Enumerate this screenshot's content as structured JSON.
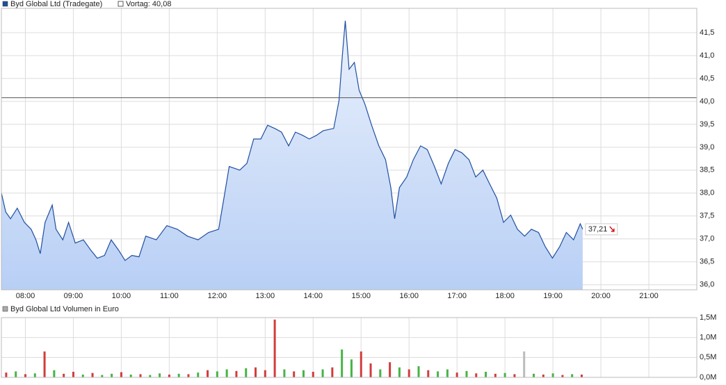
{
  "chart_data": [
    {
      "type": "line",
      "series": [
        {
          "name": "Byd Global Ltd (Tradegate)",
          "color": "#1f4fa0",
          "x": [
            7.5,
            7.59,
            7.69,
            7.83,
            7.98,
            8.12,
            8.22,
            8.31,
            8.41,
            8.56,
            8.64,
            8.78,
            8.9,
            9.04,
            9.21,
            9.36,
            9.5,
            9.65,
            9.79,
            9.94,
            10.08,
            10.22,
            10.37,
            10.51,
            10.73,
            10.95,
            11.17,
            11.38,
            11.6,
            11.82,
            12.03,
            12.14,
            12.25,
            12.47,
            12.62,
            12.76,
            12.91,
            13.05,
            13.2,
            13.34,
            13.49,
            13.63,
            13.78,
            13.92,
            14.07,
            14.21,
            14.43,
            14.54,
            14.61,
            14.67,
            14.75,
            14.86,
            14.96,
            15.08,
            15.22,
            15.37,
            15.51,
            15.62,
            15.7,
            15.8,
            15.95,
            16.09,
            16.24,
            16.38,
            16.53,
            16.67,
            16.82,
            16.96,
            17.1,
            17.25,
            17.39,
            17.54,
            17.68,
            17.83,
            17.97,
            18.12,
            18.26,
            18.41,
            18.55,
            18.7,
            18.84,
            18.99,
            19.14,
            19.28,
            19.43,
            19.57,
            19.62
          ],
          "values": [
            38.0,
            37.59,
            37.44,
            37.67,
            37.36,
            37.21,
            36.98,
            36.68,
            37.36,
            37.74,
            37.21,
            36.98,
            37.36,
            36.91,
            36.98,
            36.76,
            36.58,
            36.64,
            36.98,
            36.76,
            36.53,
            36.64,
            36.61,
            37.06,
            36.98,
            37.29,
            37.21,
            37.06,
            36.98,
            37.14,
            37.21,
            37.89,
            38.58,
            38.5,
            38.65,
            39.18,
            39.18,
            39.48,
            39.41,
            39.33,
            39.03,
            39.33,
            39.26,
            39.18,
            39.26,
            39.36,
            39.41,
            40.02,
            41.0,
            41.76,
            40.7,
            40.85,
            40.24,
            39.94,
            39.48,
            39.03,
            38.73,
            38.12,
            37.44,
            38.12,
            38.35,
            38.73,
            39.03,
            38.95,
            38.58,
            38.2,
            38.65,
            38.95,
            38.88,
            38.73,
            38.35,
            38.5,
            38.2,
            37.89,
            37.36,
            37.52,
            37.21,
            37.06,
            37.21,
            37.14,
            36.83,
            36.58,
            36.83,
            37.14,
            36.98,
            37.33,
            37.21
          ]
        }
      ],
      "reference": {
        "label": "Vortag: 40,08",
        "value": 40.08,
        "color": "#555555"
      },
      "last_value_label": {
        "value": 37.21,
        "label": "37,21"
      },
      "xlim": [
        7.5,
        22
      ],
      "xticks": [
        {
          "value": 8,
          "label": "08:00"
        },
        {
          "value": 9,
          "label": "09:00"
        },
        {
          "value": 10,
          "label": "10:00"
        },
        {
          "value": 11,
          "label": "11:00"
        },
        {
          "value": 12,
          "label": "12:00"
        },
        {
          "value": 13,
          "label": "13:00"
        },
        {
          "value": 14,
          "label": "14:00"
        },
        {
          "value": 15,
          "label": "15:00"
        },
        {
          "value": 16,
          "label": "16:00"
        },
        {
          "value": 17,
          "label": "17:00"
        },
        {
          "value": 18,
          "label": "18:00"
        },
        {
          "value": 19,
          "label": "19:00"
        },
        {
          "value": 20,
          "label": "20:00"
        },
        {
          "value": 21,
          "label": "21:00"
        }
      ],
      "ylim": [
        35.89,
        42.03
      ],
      "yticks": [
        {
          "value": 36.0,
          "label": "36,0"
        },
        {
          "value": 36.5,
          "label": "36,5"
        },
        {
          "value": 37.0,
          "label": "37,0"
        },
        {
          "value": 37.5,
          "label": "37,5"
        },
        {
          "value": 38.0,
          "label": "38,0"
        },
        {
          "value": 38.5,
          "label": "38,5"
        },
        {
          "value": 39.0,
          "label": "39,0"
        },
        {
          "value": 39.5,
          "label": "39,5"
        },
        {
          "value": 40.0,
          "label": "40,0"
        },
        {
          "value": 40.5,
          "label": "40,5"
        },
        {
          "value": 41.0,
          "label": "41,0"
        },
        {
          "value": 41.5,
          "label": "41,5"
        }
      ],
      "grid": true
    },
    {
      "type": "bar",
      "title": "Byd Global Ltd Volumen in Euro",
      "legend_color": "#aaaaaa",
      "x": [
        7.6,
        7.8,
        8.0,
        8.2,
        8.4,
        8.6,
        8.8,
        9.0,
        9.2,
        9.4,
        9.6,
        9.8,
        10.0,
        10.2,
        10.4,
        10.6,
        10.8,
        11.0,
        11.2,
        11.4,
        11.6,
        11.8,
        12.0,
        12.2,
        12.4,
        12.6,
        12.8,
        13.0,
        13.2,
        13.4,
        13.6,
        13.8,
        14.0,
        14.2,
        14.4,
        14.6,
        14.8,
        15.0,
        15.2,
        15.4,
        15.6,
        15.8,
        16.0,
        16.2,
        16.4,
        16.6,
        16.8,
        17.0,
        17.2,
        17.4,
        17.6,
        17.8,
        18.0,
        18.2,
        18.4,
        18.6,
        18.8,
        19.0,
        19.2,
        19.4,
        19.6
      ],
      "values": [
        120000,
        150000,
        80000,
        100000,
        650000,
        180000,
        90000,
        140000,
        70000,
        110000,
        60000,
        90000,
        130000,
        70000,
        80000,
        60000,
        100000,
        70000,
        90000,
        80000,
        120000,
        180000,
        150000,
        200000,
        160000,
        230000,
        250000,
        180000,
        1450000,
        200000,
        150000,
        180000,
        140000,
        200000,
        250000,
        700000,
        450000,
        650000,
        350000,
        200000,
        380000,
        250000,
        200000,
        280000,
        180000,
        150000,
        200000,
        120000,
        160000,
        100000,
        140000,
        90000,
        110000,
        80000,
        650000,
        90000,
        70000,
        100000,
        60000,
        80000,
        70000
      ],
      "colors": [
        "#d23c3c",
        "#46b446",
        "#d23c3c",
        "#46b446",
        "#d23c3c",
        "#46b446",
        "#d23c3c",
        "#d23c3c",
        "#46b446",
        "#d23c3c",
        "#46b446",
        "#46b446",
        "#d23c3c",
        "#46b446",
        "#d23c3c",
        "#46b446",
        "#46b446",
        "#d23c3c",
        "#46b446",
        "#d23c3c",
        "#46b446",
        "#d23c3c",
        "#46b446",
        "#46b446",
        "#d23c3c",
        "#46b446",
        "#d23c3c",
        "#d23c3c",
        "#d23c3c",
        "#46b446",
        "#d23c3c",
        "#46b446",
        "#d23c3c",
        "#46b446",
        "#d23c3c",
        "#46b446",
        "#46b446",
        "#d23c3c",
        "#d23c3c",
        "#46b446",
        "#d23c3c",
        "#46b446",
        "#d23c3c",
        "#46b446",
        "#d23c3c",
        "#46b446",
        "#46b446",
        "#d23c3c",
        "#46b446",
        "#d23c3c",
        "#46b446",
        "#d23c3c",
        "#46b446",
        "#d23c3c",
        "#bbbbbb",
        "#46b446",
        "#d23c3c",
        "#46b446",
        "#d23c3c",
        "#46b446",
        "#d23c3c"
      ],
      "xlim": [
        7.5,
        22
      ],
      "ylim": [
        0,
        1500000
      ],
      "yticks": [
        {
          "value": 0,
          "label": "0,0M"
        },
        {
          "value": 500000,
          "label": "0,5M"
        },
        {
          "value": 1000000,
          "label": "1,0M"
        },
        {
          "value": 1500000,
          "label": "1,5M"
        }
      ],
      "grid": true
    }
  ]
}
